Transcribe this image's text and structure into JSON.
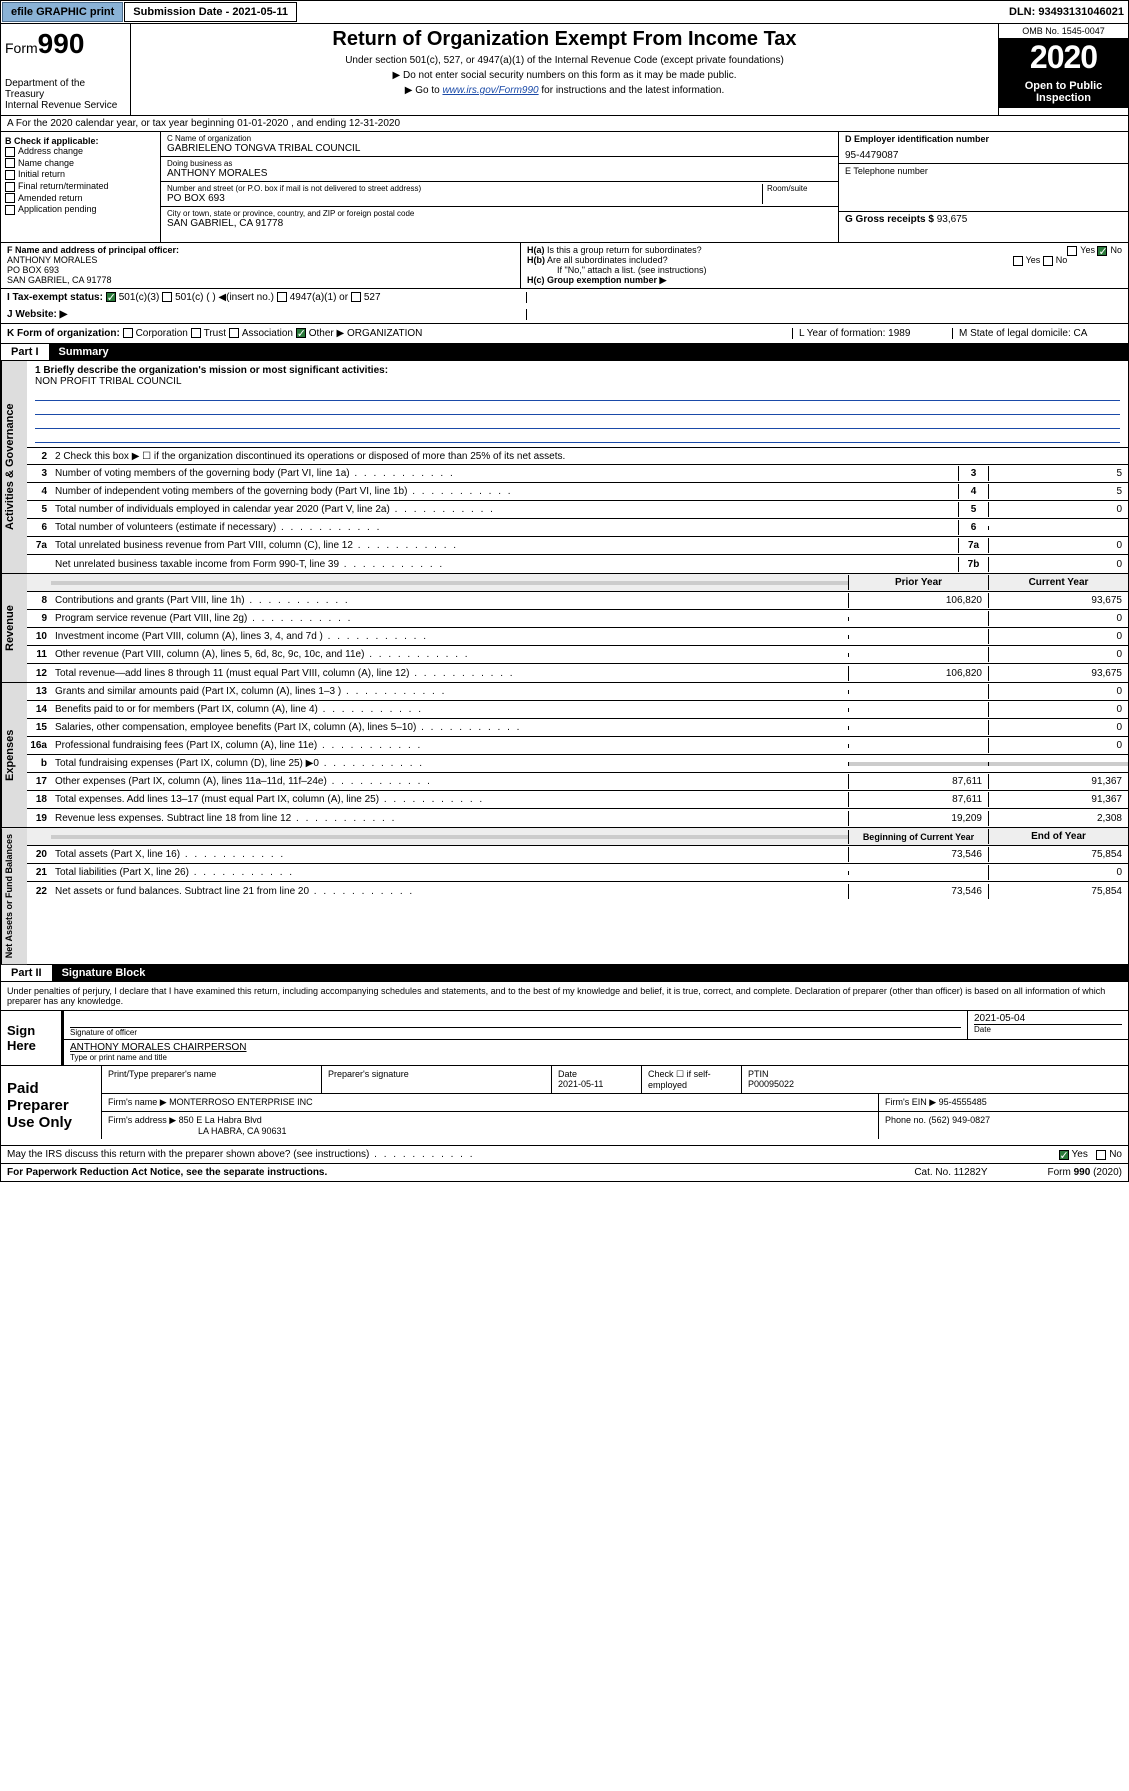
{
  "topbar": {
    "efile": "efile GRAPHIC print",
    "submission": "Submission Date - 2021-05-11",
    "dln": "DLN: 93493131046021"
  },
  "header": {
    "form": "Form",
    "num": "990",
    "dept": "Department of the Treasury\nInternal Revenue Service",
    "title": "Return of Organization Exempt From Income Tax",
    "sub": "Under section 501(c), 527, or 4947(a)(1) of the Internal Revenue Code (except private foundations)",
    "note1": "▶ Do not enter social security numbers on this form as it may be made public.",
    "note2": "▶ Go to www.irs.gov/Form990 for instructions and the latest information.",
    "omb": "OMB No. 1545-0047",
    "year": "2020",
    "open": "Open to Public Inspection"
  },
  "rowA": "A For the 2020 calendar year, or tax year beginning 01-01-2020    , and ending 12-31-2020",
  "boxB": {
    "title": "B Check if applicable:",
    "items": [
      "Address change",
      "Name change",
      "Initial return",
      "Final return/terminated",
      "Amended return",
      "Application pending"
    ]
  },
  "boxC": {
    "nameLabel": "C Name of organization",
    "name": "GABRIELENO TONGVA TRIBAL COUNCIL",
    "dbaLabel": "Doing business as",
    "dba": "ANTHONY MORALES",
    "addrLabel": "Number and street (or P.O. box if mail is not delivered to street address)",
    "roomLabel": "Room/suite",
    "addr": "PO BOX 693",
    "cityLabel": "City or town, state or province, country, and ZIP or foreign postal code",
    "city": "SAN GABRIEL, CA  91778"
  },
  "boxD": {
    "label": "D Employer identification number",
    "val": "95-4479087"
  },
  "boxE": {
    "label": "E Telephone number",
    "val": ""
  },
  "boxG": {
    "label": "G Gross receipts $",
    "val": "93,675"
  },
  "boxF": {
    "label": "F Name and address of principal officer:",
    "name": "ANTHONY MORALES",
    "addr1": "PO BOX 693",
    "addr2": "SAN GABRIEL, CA  91778"
  },
  "boxH": {
    "a": "H(a) Is this a group return for subordinates?",
    "b": "H(b) Are all subordinates included?",
    "note": "If \"No,\" attach a list. (see instructions)",
    "c": "H(c) Group exemption number ▶"
  },
  "rowI": {
    "label": "I    Tax-exempt status:",
    "opts": [
      "501(c)(3)",
      "501(c) (  ) ◀(insert no.)",
      "4947(a)(1) or",
      "527"
    ]
  },
  "rowJ": "J    Website: ▶",
  "rowK": {
    "label": "K Form of organization:",
    "opts": [
      "Corporation",
      "Trust",
      "Association",
      "Other ▶"
    ],
    "other": "ORGANIZATION",
    "l": "L Year of formation: 1989",
    "m": "M State of legal domicile: CA"
  },
  "part1": {
    "num": "Part I",
    "title": "Summary"
  },
  "mission": {
    "label": "1 Briefly describe the organization's mission or most significant activities:",
    "text": "NON PROFIT TRIBAL COUNCIL"
  },
  "line2": "2  Check this box ▶ ☐ if the organization discontinued its operations or disposed of more than 25% of its net assets.",
  "govRows": [
    {
      "n": "3",
      "t": "Number of voting members of the governing body (Part VI, line 1a)",
      "ln": "3",
      "v": "5"
    },
    {
      "n": "4",
      "t": "Number of independent voting members of the governing body (Part VI, line 1b)",
      "ln": "4",
      "v": "5"
    },
    {
      "n": "5",
      "t": "Total number of individuals employed in calendar year 2020 (Part V, line 2a)",
      "ln": "5",
      "v": "0"
    },
    {
      "n": "6",
      "t": "Total number of volunteers (estimate if necessary)",
      "ln": "6",
      "v": ""
    },
    {
      "n": "7a",
      "t": "Total unrelated business revenue from Part VIII, column (C), line 12",
      "ln": "7a",
      "v": "0"
    },
    {
      "n": "",
      "t": "Net unrelated business taxable income from Form 990-T, line 39",
      "ln": "7b",
      "v": "0"
    }
  ],
  "yearHdr": {
    "prior": "Prior Year",
    "current": "Current Year"
  },
  "revRows": [
    {
      "n": "8",
      "t": "Contributions and grants (Part VIII, line 1h)",
      "p": "106,820",
      "c": "93,675"
    },
    {
      "n": "9",
      "t": "Program service revenue (Part VIII, line 2g)",
      "p": "",
      "c": "0"
    },
    {
      "n": "10",
      "t": "Investment income (Part VIII, column (A), lines 3, 4, and 7d )",
      "p": "",
      "c": "0"
    },
    {
      "n": "11",
      "t": "Other revenue (Part VIII, column (A), lines 5, 6d, 8c, 9c, 10c, and 11e)",
      "p": "",
      "c": "0"
    },
    {
      "n": "12",
      "t": "Total revenue—add lines 8 through 11 (must equal Part VIII, column (A), line 12)",
      "p": "106,820",
      "c": "93,675"
    }
  ],
  "expRows": [
    {
      "n": "13",
      "t": "Grants and similar amounts paid (Part IX, column (A), lines 1–3 )",
      "p": "",
      "c": "0"
    },
    {
      "n": "14",
      "t": "Benefits paid to or for members (Part IX, column (A), line 4)",
      "p": "",
      "c": "0"
    },
    {
      "n": "15",
      "t": "Salaries, other compensation, employee benefits (Part IX, column (A), lines 5–10)",
      "p": "",
      "c": "0"
    },
    {
      "n": "16a",
      "t": "Professional fundraising fees (Part IX, column (A), line 11e)",
      "p": "",
      "c": "0"
    },
    {
      "n": "b",
      "t": "Total fundraising expenses (Part IX, column (D), line 25) ▶0",
      "p": "sh",
      "c": "sh"
    },
    {
      "n": "17",
      "t": "Other expenses (Part IX, column (A), lines 11a–11d, 11f–24e)",
      "p": "87,611",
      "c": "91,367"
    },
    {
      "n": "18",
      "t": "Total expenses. Add lines 13–17 (must equal Part IX, column (A), line 25)",
      "p": "87,611",
      "c": "91,367"
    },
    {
      "n": "19",
      "t": "Revenue less expenses. Subtract line 18 from line 12",
      "p": "19,209",
      "c": "2,308"
    }
  ],
  "balHdr": {
    "prior": "Beginning of Current Year",
    "current": "End of Year"
  },
  "balRows": [
    {
      "n": "20",
      "t": "Total assets (Part X, line 16)",
      "p": "73,546",
      "c": "75,854"
    },
    {
      "n": "21",
      "t": "Total liabilities (Part X, line 26)",
      "p": "",
      "c": "0"
    },
    {
      "n": "22",
      "t": "Net assets or fund balances. Subtract line 21 from line 20",
      "p": "73,546",
      "c": "75,854"
    }
  ],
  "part2": {
    "num": "Part II",
    "title": "Signature Block"
  },
  "sigText": "Under penalties of perjury, I declare that I have examined this return, including accompanying schedules and statements, and to the best of my knowledge and belief, it is true, correct, and complete. Declaration of preparer (other than officer) is based on all information of which preparer has any knowledge.",
  "sign": {
    "here": "Sign Here",
    "sigLabel": "Signature of officer",
    "date": "2021-05-04",
    "dateLabel": "Date",
    "name": "ANTHONY MORALES CHAIRPERSON",
    "nameLabel": "Type or print name and title"
  },
  "paid": {
    "title": "Paid Preparer Use Only",
    "h": [
      "Print/Type preparer's name",
      "Preparer's signature",
      "Date",
      "Check ☐ if self-employed",
      "PTIN"
    ],
    "r1date": "2021-05-11",
    "ptin": "P00095022",
    "firmLabel": "Firm's name   ▶",
    "firm": "MONTERROSO ENTERPRISE INC",
    "einLabel": "Firm's EIN ▶",
    "ein": "95-4555485",
    "addrLabel": "Firm's address ▶",
    "addr1": "850 E La Habra Blvd",
    "addr2": "LA HABRA, CA  90631",
    "phoneLabel": "Phone no.",
    "phone": "(562) 949-0827"
  },
  "discuss": "May the IRS discuss this return with the preparer shown above? (see instructions)",
  "footer": {
    "left": "For Paperwork Reduction Act Notice, see the separate instructions.",
    "mid": "Cat. No. 11282Y",
    "right": "Form 990 (2020)"
  }
}
